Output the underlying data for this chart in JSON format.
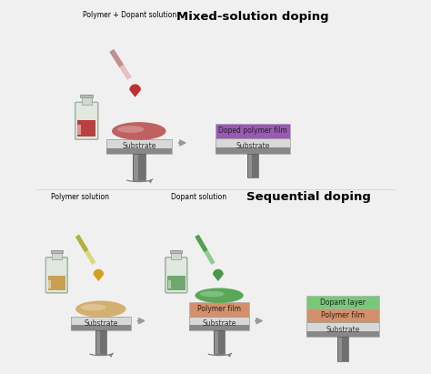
{
  "bg_color": "#f0f0f0",
  "title_mixed": "Mixed-solution doping",
  "title_sequential": "Sequential doping",
  "label_polymer_dopant": "Polymer + Dopant solution",
  "label_polymer_sol": "Polymer solution",
  "label_dopant_sol": "Dopant solution",
  "label_substrate": "Substrate",
  "label_doped_film": "Doped polymer film",
  "label_polymer_film": "Polymer film",
  "label_dopant_layer": "Dopant layer",
  "color_bg": "#f0f0f0",
  "color_sub_light": "#d8d8d8",
  "color_sub_dark": "#888888",
  "color_ped": "#707070",
  "color_ped_dark": "#505050",
  "color_doped": "#9b59b6",
  "color_doped_edge": "#7d3ab8",
  "color_mixed_liq": "#b84040",
  "color_mixed_blob": "#c06060",
  "color_mixed_drop": "#c03030",
  "color_pip_red_light": "#e8c0c0",
  "color_pip_red_dark": "#c09090",
  "color_poly_liq": "#c8a050",
  "color_poly_blob": "#d4b070",
  "color_poly_drop": "#d4a020",
  "color_pip_yel_light": "#d8d880",
  "color_pip_yel_dark": "#b0b040",
  "color_dop_liq": "#70a870",
  "color_dop_blob": "#58a858",
  "color_dop_drop": "#489848",
  "color_pip_grn_light": "#90cc90",
  "color_pip_grn_dark": "#50a050",
  "color_dop_layer": "#78c878",
  "color_poly_layer": "#d4906a",
  "color_arrow": "#999999",
  "color_rot_arrow": "#808080",
  "color_vial_glass": "#e0e8e0",
  "color_vial_glass_edge": "#a0b0a0",
  "color_vial_neck": "#d0d8d0",
  "color_vial_sheen": "#f0f4f0"
}
